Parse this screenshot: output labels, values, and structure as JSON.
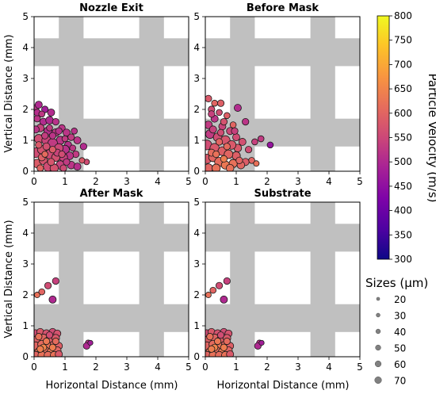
{
  "chart_data": {
    "type": "scatter",
    "panels": [
      {
        "title": "Nozzle Exit",
        "points": [
          [
            0.05,
            2.05,
            40,
            520
          ],
          [
            0.15,
            2.15,
            45,
            500
          ],
          [
            0.35,
            2.0,
            40,
            480
          ],
          [
            0.55,
            1.9,
            45,
            505
          ],
          [
            0.1,
            1.7,
            40,
            520
          ],
          [
            0.3,
            1.6,
            45,
            505
          ],
          [
            0.5,
            1.65,
            50,
            500
          ],
          [
            0.7,
            1.6,
            40,
            515
          ],
          [
            0.9,
            1.4,
            40,
            520
          ],
          [
            1.05,
            1.25,
            45,
            520
          ],
          [
            1.2,
            1.1,
            40,
            530
          ],
          [
            1.3,
            1.3,
            35,
            515
          ],
          [
            1.4,
            1.0,
            45,
            520
          ],
          [
            1.6,
            0.8,
            40,
            505
          ],
          [
            1.7,
            0.3,
            30,
            560
          ],
          [
            1.55,
            0.35,
            30,
            580
          ],
          [
            1.35,
            0.55,
            40,
            530
          ],
          [
            1.1,
            0.85,
            45,
            510
          ],
          [
            0.2,
            1.4,
            50,
            540
          ],
          [
            0.45,
            1.3,
            55,
            510
          ],
          [
            0.7,
            1.25,
            50,
            525
          ],
          [
            0.85,
            1.0,
            55,
            520
          ],
          [
            1.0,
            0.7,
            60,
            515
          ],
          [
            1.15,
            0.5,
            50,
            520
          ],
          [
            0.15,
            1.05,
            60,
            560
          ],
          [
            0.4,
            1.0,
            65,
            545
          ],
          [
            0.6,
            0.9,
            70,
            530
          ],
          [
            0.8,
            0.75,
            60,
            550
          ],
          [
            0.95,
            0.45,
            55,
            540
          ],
          [
            1.2,
            0.2,
            50,
            520
          ],
          [
            1.4,
            0.15,
            45,
            510
          ],
          [
            0.05,
            0.6,
            70,
            560
          ],
          [
            0.25,
            0.7,
            60,
            570
          ],
          [
            0.5,
            0.55,
            65,
            555
          ],
          [
            0.7,
            0.45,
            55,
            565
          ],
          [
            0.85,
            0.2,
            60,
            540
          ],
          [
            0.1,
            0.25,
            60,
            585
          ],
          [
            0.3,
            0.35,
            55,
            570
          ],
          [
            0.45,
            0.15,
            65,
            560
          ],
          [
            0.65,
            0.1,
            55,
            570
          ],
          [
            0.05,
            1.35,
            45,
            520
          ],
          [
            0.35,
            1.15,
            40,
            535
          ],
          [
            0.6,
            1.15,
            40,
            520
          ],
          [
            0.25,
            0.45,
            45,
            590
          ],
          [
            0.55,
            0.3,
            45,
            575
          ],
          [
            0.75,
            0.6,
            45,
            545
          ],
          [
            1.05,
            0.3,
            40,
            530
          ],
          [
            0.9,
            0.55,
            40,
            560
          ],
          [
            0.15,
            0.85,
            40,
            580
          ],
          [
            0.4,
            0.8,
            45,
            565
          ],
          [
            0.2,
            0.1,
            40,
            600
          ],
          [
            0.1,
            1.9,
            40,
            510
          ],
          [
            0.25,
            1.85,
            35,
            525
          ],
          [
            0.6,
            0.7,
            40,
            585
          ],
          [
            0.35,
            0.55,
            35,
            610
          ],
          [
            0.5,
            1.4,
            35,
            530
          ],
          [
            0.8,
            1.3,
            40,
            515
          ],
          [
            1.0,
            1.05,
            35,
            530
          ],
          [
            1.25,
            0.75,
            35,
            525
          ],
          [
            0.95,
            0.1,
            40,
            555
          ]
        ]
      },
      {
        "title": "Before Mask",
        "points": [
          [
            0.1,
            2.35,
            40,
            580
          ],
          [
            0.3,
            2.2,
            35,
            600
          ],
          [
            0.5,
            2.2,
            40,
            590
          ],
          [
            1.05,
            2.05,
            45,
            505
          ],
          [
            1.3,
            1.6,
            40,
            520
          ],
          [
            0.2,
            2.0,
            40,
            560
          ],
          [
            0.7,
            1.8,
            35,
            590
          ],
          [
            2.1,
            0.85,
            35,
            460
          ],
          [
            1.8,
            1.05,
            35,
            530
          ],
          [
            1.6,
            0.95,
            35,
            540
          ],
          [
            1.4,
            0.7,
            40,
            560
          ],
          [
            1.5,
            0.35,
            35,
            600
          ],
          [
            1.65,
            0.25,
            30,
            620
          ],
          [
            0.1,
            1.5,
            50,
            530
          ],
          [
            0.3,
            1.7,
            45,
            520
          ],
          [
            0.55,
            1.45,
            45,
            545
          ],
          [
            0.8,
            1.3,
            45,
            550
          ],
          [
            1.0,
            1.1,
            45,
            560
          ],
          [
            1.2,
            0.95,
            45,
            565
          ],
          [
            1.05,
            0.75,
            50,
            580
          ],
          [
            1.3,
            0.3,
            45,
            585
          ],
          [
            0.15,
            1.2,
            60,
            530
          ],
          [
            0.4,
            1.1,
            60,
            560
          ],
          [
            0.65,
            1.0,
            65,
            575
          ],
          [
            0.85,
            0.85,
            60,
            580
          ],
          [
            1.0,
            0.5,
            55,
            590
          ],
          [
            1.15,
            0.2,
            50,
            600
          ],
          [
            0.05,
            0.85,
            70,
            560
          ],
          [
            0.3,
            0.75,
            65,
            580
          ],
          [
            0.55,
            0.65,
            60,
            590
          ],
          [
            0.75,
            0.55,
            60,
            600
          ],
          [
            0.9,
            0.25,
            55,
            620
          ],
          [
            0.05,
            0.4,
            65,
            580
          ],
          [
            0.25,
            0.45,
            60,
            600
          ],
          [
            0.45,
            0.3,
            65,
            610
          ],
          [
            0.65,
            0.2,
            55,
            630
          ],
          [
            0.1,
            0.1,
            60,
            600
          ],
          [
            0.35,
            0.1,
            55,
            620
          ],
          [
            0.8,
            0.1,
            50,
            620
          ],
          [
            0.2,
            1.85,
            40,
            540
          ],
          [
            0.45,
            1.9,
            35,
            560
          ],
          [
            0.6,
            1.6,
            40,
            570
          ],
          [
            0.9,
            1.5,
            35,
            600
          ],
          [
            0.45,
            0.95,
            40,
            600
          ],
          [
            0.7,
            0.8,
            40,
            610
          ],
          [
            0.2,
            0.6,
            45,
            610
          ],
          [
            0.6,
            0.4,
            40,
            640
          ],
          [
            1.1,
            0.35,
            40,
            600
          ],
          [
            0.95,
            1.3,
            40,
            540
          ],
          [
            0.25,
            1.35,
            45,
            540
          ],
          [
            0.5,
            1.25,
            40,
            560
          ],
          [
            0.35,
            0.55,
            40,
            620
          ]
        ]
      },
      {
        "title": "After Mask",
        "points": [
          [
            0.1,
            2.0,
            30,
            620
          ],
          [
            0.25,
            2.1,
            35,
            600
          ],
          [
            0.45,
            2.3,
            40,
            560
          ],
          [
            0.6,
            1.85,
            45,
            500
          ],
          [
            0.7,
            2.45,
            40,
            540
          ],
          [
            1.75,
            0.45,
            30,
            520
          ],
          [
            1.7,
            0.35,
            40,
            500
          ],
          [
            1.82,
            0.45,
            25,
            480
          ],
          [
            0.05,
            0.75,
            50,
            560
          ],
          [
            0.2,
            0.8,
            45,
            580
          ],
          [
            0.4,
            0.75,
            50,
            570
          ],
          [
            0.6,
            0.8,
            45,
            560
          ],
          [
            0.75,
            0.75,
            45,
            570
          ],
          [
            0.1,
            0.55,
            55,
            590
          ],
          [
            0.3,
            0.6,
            55,
            600
          ],
          [
            0.5,
            0.55,
            55,
            590
          ],
          [
            0.7,
            0.6,
            50,
            580
          ],
          [
            0.05,
            0.35,
            55,
            600
          ],
          [
            0.25,
            0.4,
            55,
            610
          ],
          [
            0.45,
            0.35,
            55,
            620
          ],
          [
            0.65,
            0.4,
            50,
            600
          ],
          [
            0.8,
            0.35,
            45,
            590
          ],
          [
            0.15,
            0.15,
            55,
            620
          ],
          [
            0.35,
            0.2,
            55,
            610
          ],
          [
            0.55,
            0.15,
            55,
            630
          ],
          [
            0.75,
            0.2,
            50,
            600
          ],
          [
            0.05,
            0.05,
            50,
            600
          ],
          [
            0.25,
            0.05,
            50,
            620
          ],
          [
            0.45,
            0.05,
            50,
            610
          ],
          [
            0.65,
            0.05,
            50,
            620
          ],
          [
            0.8,
            0.08,
            45,
            580
          ],
          [
            0.15,
            0.65,
            40,
            620
          ],
          [
            0.4,
            0.5,
            40,
            630
          ],
          [
            0.6,
            0.3,
            40,
            640
          ],
          [
            0.3,
            0.3,
            40,
            650
          ],
          [
            0.5,
            0.7,
            40,
            560
          ],
          [
            0.7,
            0.5,
            40,
            610
          ],
          [
            0.2,
            0.25,
            40,
            640
          ]
        ]
      },
      {
        "title": "Substrate",
        "points": [
          [
            0.1,
            2.0,
            30,
            620
          ],
          [
            0.25,
            2.15,
            35,
            600
          ],
          [
            0.45,
            2.3,
            40,
            560
          ],
          [
            0.6,
            1.85,
            45,
            500
          ],
          [
            0.7,
            2.45,
            40,
            540
          ],
          [
            1.75,
            0.45,
            30,
            520
          ],
          [
            1.7,
            0.35,
            40,
            500
          ],
          [
            1.82,
            0.45,
            25,
            480
          ],
          [
            0.05,
            0.75,
            50,
            560
          ],
          [
            0.2,
            0.8,
            45,
            580
          ],
          [
            0.4,
            0.75,
            50,
            570
          ],
          [
            0.6,
            0.8,
            45,
            560
          ],
          [
            0.75,
            0.75,
            45,
            570
          ],
          [
            0.1,
            0.55,
            55,
            590
          ],
          [
            0.3,
            0.6,
            55,
            600
          ],
          [
            0.5,
            0.55,
            55,
            590
          ],
          [
            0.7,
            0.6,
            50,
            580
          ],
          [
            0.05,
            0.35,
            55,
            600
          ],
          [
            0.25,
            0.4,
            55,
            610
          ],
          [
            0.45,
            0.35,
            55,
            620
          ],
          [
            0.65,
            0.4,
            50,
            600
          ],
          [
            0.8,
            0.35,
            45,
            590
          ],
          [
            0.15,
            0.15,
            55,
            620
          ],
          [
            0.35,
            0.2,
            55,
            610
          ],
          [
            0.55,
            0.15,
            55,
            630
          ],
          [
            0.75,
            0.2,
            50,
            600
          ],
          [
            0.05,
            0.05,
            50,
            600
          ],
          [
            0.25,
            0.05,
            50,
            620
          ],
          [
            0.45,
            0.05,
            50,
            610
          ],
          [
            0.65,
            0.05,
            50,
            620
          ],
          [
            0.8,
            0.08,
            45,
            580
          ],
          [
            0.15,
            0.65,
            40,
            620
          ],
          [
            0.4,
            0.5,
            40,
            630
          ],
          [
            0.6,
            0.3,
            40,
            640
          ],
          [
            0.3,
            0.3,
            40,
            650
          ],
          [
            0.5,
            0.7,
            40,
            560
          ],
          [
            0.7,
            0.5,
            40,
            610
          ],
          [
            0.2,
            0.25,
            40,
            640
          ]
        ]
      }
    ],
    "xlabel": "Horizontal Distance (mm)",
    "ylabel": "Vertical Distance (mm)",
    "xlim": [
      0,
      5
    ],
    "ylim": [
      0,
      5
    ],
    "xticks": [
      "0",
      "1",
      "2",
      "3",
      "4",
      "5"
    ],
    "yticks": [
      "0",
      "1",
      "2",
      "3",
      "4",
      "5"
    ],
    "mask_pattern": {
      "color": "#c0c0c0",
      "vertical_bars": [
        [
          0.8,
          1.6
        ],
        [
          3.4,
          4.2
        ]
      ],
      "horizontal_bars": [
        [
          0.8,
          1.7
        ],
        [
          3.4,
          4.3
        ]
      ]
    },
    "colorbar": {
      "label": "Particle Velocity (m/s)",
      "min": 300,
      "max": 800,
      "ticks": [
        "300",
        "350",
        "400",
        "450",
        "500",
        "550",
        "600",
        "650",
        "700",
        "750",
        "800"
      ],
      "colormap": "plasma"
    },
    "size_legend": {
      "title": "Sizes (μm)",
      "labels": [
        "20",
        "30",
        "40",
        "50",
        "60",
        "70"
      ],
      "values": [
        20,
        30,
        40,
        50,
        60,
        70
      ]
    }
  }
}
